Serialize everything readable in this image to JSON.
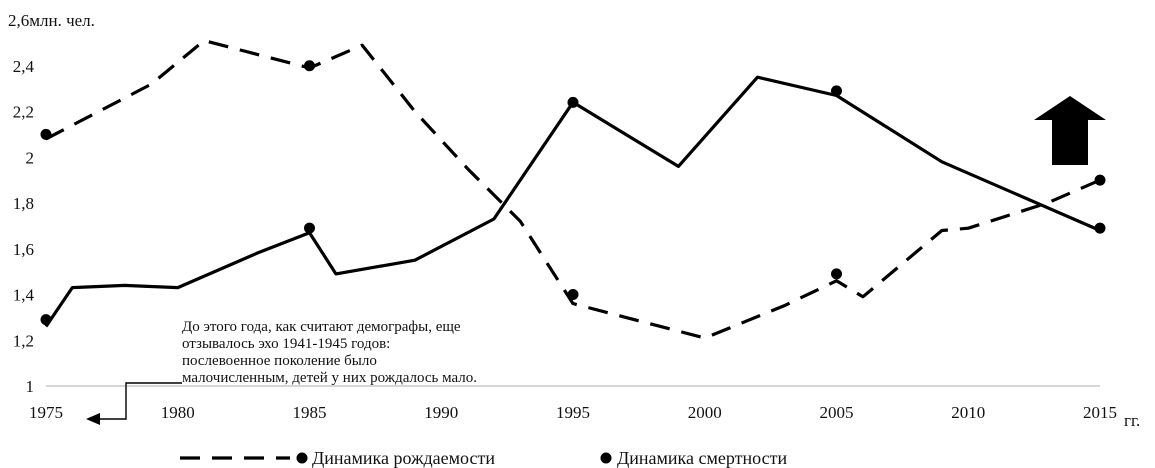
{
  "chart_data": {
    "type": "line",
    "y_unit_label": "2,6млн. чел.",
    "x_unit_label": "гг.",
    "xlim": [
      1975,
      2015
    ],
    "ylim": [
      1,
      2.6
    ],
    "x_ticks": [
      "1975",
      "1980",
      "1985",
      "1990",
      "1995",
      "2000",
      "2005",
      "2010",
      "2015"
    ],
    "y_ticks": [
      "1",
      "1,2",
      "1,4",
      "1,6",
      "1,8",
      "2",
      "2,2",
      "2,4"
    ],
    "grid": false,
    "legend_position": "bottom",
    "series": [
      {
        "name": "Динамика рождаемости",
        "style": "dashed",
        "color": "#000000",
        "points": [
          [
            1975,
            2.08
          ],
          [
            1977,
            2.2
          ],
          [
            1979,
            2.32
          ],
          [
            1981,
            2.51
          ],
          [
            1983,
            2.45
          ],
          [
            1985,
            2.39
          ],
          [
            1987,
            2.49
          ],
          [
            1989,
            2.2
          ],
          [
            1991,
            1.95
          ],
          [
            1993,
            1.72
          ],
          [
            1995,
            1.36
          ],
          [
            1997,
            1.3
          ],
          [
            2000,
            1.21
          ],
          [
            2003,
            1.35
          ],
          [
            2005,
            1.46
          ],
          [
            2006,
            1.39
          ],
          [
            2009,
            1.68
          ],
          [
            2010,
            1.69
          ],
          [
            2013,
            1.8
          ],
          [
            2015,
            1.9
          ]
        ],
        "markers": [
          [
            1975,
            2.1
          ],
          [
            1985,
            2.4
          ]
        ]
      },
      {
        "name": "Динамика смертности",
        "style": "solid",
        "color": "#000000",
        "points": [
          [
            1975,
            1.26
          ],
          [
            1976,
            1.43
          ],
          [
            1978,
            1.44
          ],
          [
            1980,
            1.43
          ],
          [
            1983,
            1.58
          ],
          [
            1985,
            1.67
          ],
          [
            1986,
            1.49
          ],
          [
            1989,
            1.55
          ],
          [
            1992,
            1.73
          ],
          [
            1995,
            2.24
          ],
          [
            1999,
            1.96
          ],
          [
            2002,
            2.35
          ],
          [
            2005,
            2.27
          ],
          [
            2009,
            1.98
          ],
          [
            2015,
            1.68
          ]
        ],
        "markers": [
          [
            1975,
            1.29
          ],
          [
            1985,
            1.69
          ],
          [
            1995,
            2.24
          ],
          [
            2005,
            2.29
          ],
          [
            2015,
            1.69
          ]
        ]
      }
    ],
    "extra_markers": [
      [
        1995,
        1.4
      ],
      [
        2005,
        1.49
      ],
      [
        2015,
        1.9
      ]
    ],
    "annotations": [
      {
        "lines": [
          "До этого года, как считают демографы, еще",
          "отзывалось эхо 1941-1945 годов:",
          "послевоенное поколение было",
          "малочисленным, детей у них рождалось мало."
        ],
        "points_to_year": 1975
      }
    ],
    "up_arrow_icon": "up-arrow-icon"
  }
}
